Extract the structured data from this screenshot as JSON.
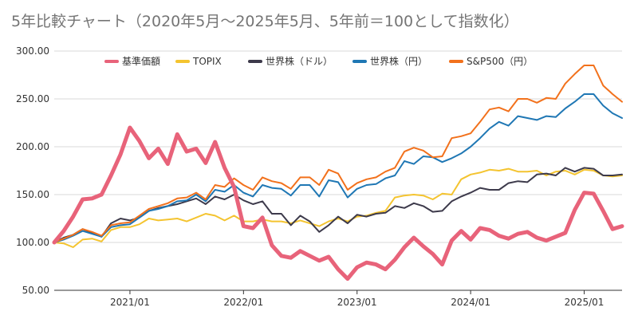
{
  "chart_data": {
    "type": "line",
    "title": "5年比較チャート（2020年5月〜2025年5月、5年前＝100として指数化）",
    "xlabel": "",
    "ylabel": "",
    "ylim": [
      50,
      300
    ],
    "yticks": [
      "300.00",
      "250.00",
      "200.00",
      "150.00",
      "100.00",
      "50.00"
    ],
    "yticks_values": [
      300,
      250,
      200,
      150,
      100,
      50
    ],
    "xticks": [
      "2021/01",
      "2022/01",
      "2023/01",
      "2024/01",
      "2025/01"
    ],
    "xticks_index": [
      8,
      20,
      32,
      44,
      56
    ],
    "grid": true,
    "legend_position": "top",
    "x": [
      "2020/05",
      "2020/06",
      "2020/07",
      "2020/08",
      "2020/09",
      "2020/10",
      "2020/11",
      "2020/12",
      "2021/01",
      "2021/02",
      "2021/03",
      "2021/04",
      "2021/05",
      "2021/06",
      "2021/07",
      "2021/08",
      "2021/09",
      "2021/10",
      "2021/11",
      "2021/12",
      "2022/01",
      "2022/02",
      "2022/03",
      "2022/04",
      "2022/05",
      "2022/06",
      "2022/07",
      "2022/08",
      "2022/09",
      "2022/10",
      "2022/11",
      "2022/12",
      "2023/01",
      "2023/02",
      "2023/03",
      "2023/04",
      "2023/05",
      "2023/06",
      "2023/07",
      "2023/08",
      "2023/09",
      "2023/10",
      "2023/11",
      "2023/12",
      "2024/01",
      "2024/02",
      "2024/03",
      "2024/04",
      "2024/05",
      "2024/06",
      "2024/07",
      "2024/08",
      "2024/09",
      "2024/10",
      "2024/11",
      "2024/12",
      "2025/01",
      "2025/02",
      "2025/03",
      "2025/04",
      "2025/05"
    ],
    "series": [
      {
        "name": "基準価額",
        "color": "#e8637a",
        "width": 5,
        "values": [
          100,
          112,
          127,
          145,
          146,
          150,
          170,
          192,
          220,
          206,
          188,
          198,
          182,
          213,
          195,
          198,
          183,
          205,
          178,
          158,
          117,
          115,
          126,
          97,
          86,
          84,
          91,
          86,
          81,
          85,
          72,
          62,
          74,
          79,
          77,
          72,
          82,
          95,
          105,
          96,
          88,
          77,
          102,
          112,
          103,
          115,
          113,
          107,
          104,
          109,
          111,
          105,
          102,
          106,
          110,
          134,
          152,
          151,
          133,
          114,
          117
        ]
      },
      {
        "name": "TOPIX",
        "color": "#f4c430",
        "width": 2,
        "values": [
          100,
          99,
          95,
          103,
          104,
          101,
          113,
          116,
          116,
          119,
          125,
          123,
          124,
          125,
          122,
          126,
          130,
          128,
          123,
          128,
          122,
          122,
          124,
          122,
          122,
          120,
          123,
          120,
          117,
          122,
          125,
          122,
          127,
          128,
          131,
          133,
          147,
          149,
          150,
          149,
          145,
          151,
          150,
          166,
          171,
          173,
          176,
          175,
          177,
          174,
          174,
          175,
          170,
          174,
          175,
          171,
          176,
          175,
          170,
          169,
          170
        ]
      },
      {
        "name": "世界株（ドル）",
        "color": "#3d3a4b",
        "width": 2,
        "values": [
          100,
          105,
          108,
          114,
          110,
          106,
          120,
          125,
          123,
          126,
          133,
          136,
          138,
          140,
          143,
          146,
          140,
          148,
          145,
          150,
          144,
          140,
          143,
          130,
          130,
          118,
          128,
          122,
          111,
          118,
          127,
          120,
          129,
          127,
          130,
          131,
          138,
          136,
          141,
          138,
          132,
          133,
          143,
          148,
          152,
          157,
          155,
          155,
          162,
          164,
          163,
          171,
          172,
          170,
          178,
          174,
          178,
          177,
          170,
          170,
          171
        ]
      },
      {
        "name": "世界株（円）",
        "color": "#1f77b4",
        "width": 2,
        "values": [
          100,
          103,
          107,
          112,
          109,
          106,
          116,
          118,
          119,
          126,
          133,
          135,
          138,
          143,
          144,
          150,
          143,
          155,
          153,
          160,
          152,
          148,
          160,
          157,
          156,
          149,
          160,
          160,
          148,
          165,
          163,
          147,
          156,
          160,
          161,
          167,
          170,
          185,
          182,
          190,
          189,
          184,
          188,
          193,
          200,
          209,
          219,
          226,
          222,
          232,
          230,
          228,
          232,
          231,
          240,
          247,
          255,
          255,
          243,
          235,
          230
        ]
      },
      {
        "name": "S&P500（円）",
        "color": "#f2711c",
        "width": 2,
        "values": [
          100,
          104,
          108,
          114,
          111,
          107,
          118,
          120,
          121,
          128,
          135,
          138,
          141,
          146,
          147,
          152,
          145,
          160,
          158,
          167,
          160,
          155,
          168,
          164,
          162,
          156,
          168,
          168,
          160,
          176,
          172,
          155,
          162,
          166,
          168,
          174,
          178,
          195,
          199,
          196,
          189,
          190,
          209,
          211,
          214,
          226,
          239,
          241,
          237,
          250,
          250,
          246,
          251,
          250,
          266,
          276,
          285,
          285,
          264,
          255,
          247
        ]
      }
    ]
  }
}
